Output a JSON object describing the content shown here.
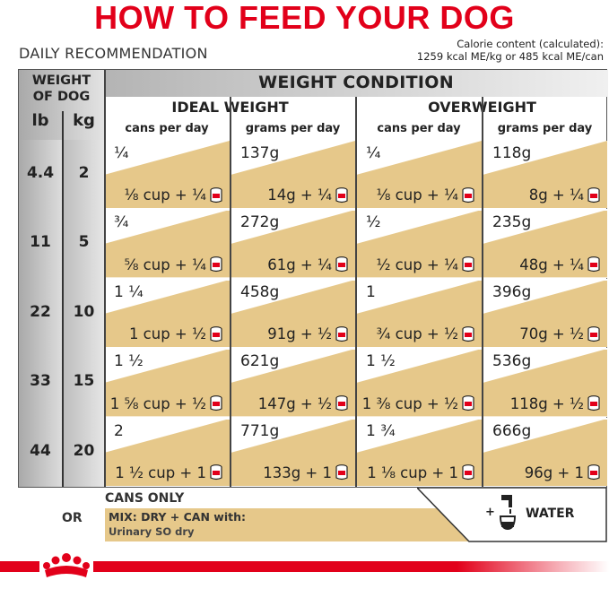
{
  "title": "HOW TO FEED YOUR DOG",
  "daily_recommendation": "DAILY RECOMMENDATION",
  "calorie": {
    "line1": "Calorie content (calculated):",
    "line2": "1259 kcal ME/kg or  485 kcal ME/can"
  },
  "weight_of_dog": {
    "line1": "WEIGHT",
    "line2": "OF DOG",
    "lb": "lb",
    "kg": "kg"
  },
  "weight_condition": "WEIGHT CONDITION",
  "ideal_weight": "IDEAL WEIGHT",
  "overweight": "OVERWEIGHT",
  "col_cans": "cans per day",
  "col_grams": "grams per day",
  "colors": {
    "tan": "#e6c88a",
    "red": "#e2001a",
    "grey": "#a9a9a9"
  },
  "rows": [
    {
      "lb": "4.4",
      "kg": "2",
      "ideal_cans": "¼",
      "ideal_cans_mix": "⅛ cup + ¼",
      "ideal_grams": "137g",
      "ideal_grams_mix": "14g + ¼",
      "over_cans": "¼",
      "over_cans_mix": "⅛ cup + ¼",
      "over_grams": "118g",
      "over_grams_mix": "8g + ¼"
    },
    {
      "lb": "11",
      "kg": "5",
      "ideal_cans": "¾",
      "ideal_cans_mix": "⅝ cup + ¼",
      "ideal_grams": "272g",
      "ideal_grams_mix": "61g + ¼",
      "over_cans": "½",
      "over_cans_mix": "½ cup + ¼",
      "over_grams": "235g",
      "over_grams_mix": "48g + ¼"
    },
    {
      "lb": "22",
      "kg": "10",
      "ideal_cans": "1 ¼",
      "ideal_cans_mix": "1 cup + ½",
      "ideal_grams": "458g",
      "ideal_grams_mix": "91g + ½",
      "over_cans": "1",
      "over_cans_mix": "¾ cup + ½",
      "over_grams": "396g",
      "over_grams_mix": "70g + ½"
    },
    {
      "lb": "33",
      "kg": "15",
      "ideal_cans": "1 ½",
      "ideal_cans_mix": "1 ⅝ cup + ½",
      "ideal_grams": "621g",
      "ideal_grams_mix": "147g + ½",
      "over_cans": "1 ½",
      "over_cans_mix": "1 ⅜ cup + ½",
      "over_grams": "536g",
      "over_grams_mix": "118g + ½"
    },
    {
      "lb": "44",
      "kg": "20",
      "ideal_cans": "2",
      "ideal_cans_mix": "1 ½ cup + 1",
      "ideal_grams": "771g",
      "ideal_grams_mix": "133g + 1",
      "over_cans": "1 ¾",
      "over_cans_mix": "1 ⅛ cup + 1",
      "over_grams": "666g",
      "over_grams_mix": "96g + 1"
    }
  ],
  "legend": {
    "or": "OR",
    "cans_only": "CANS ONLY",
    "mix_line1": "MIX: DRY + CAN with:",
    "mix_line2": "Urinary SO dry",
    "plus": "+",
    "water": "WATER"
  }
}
